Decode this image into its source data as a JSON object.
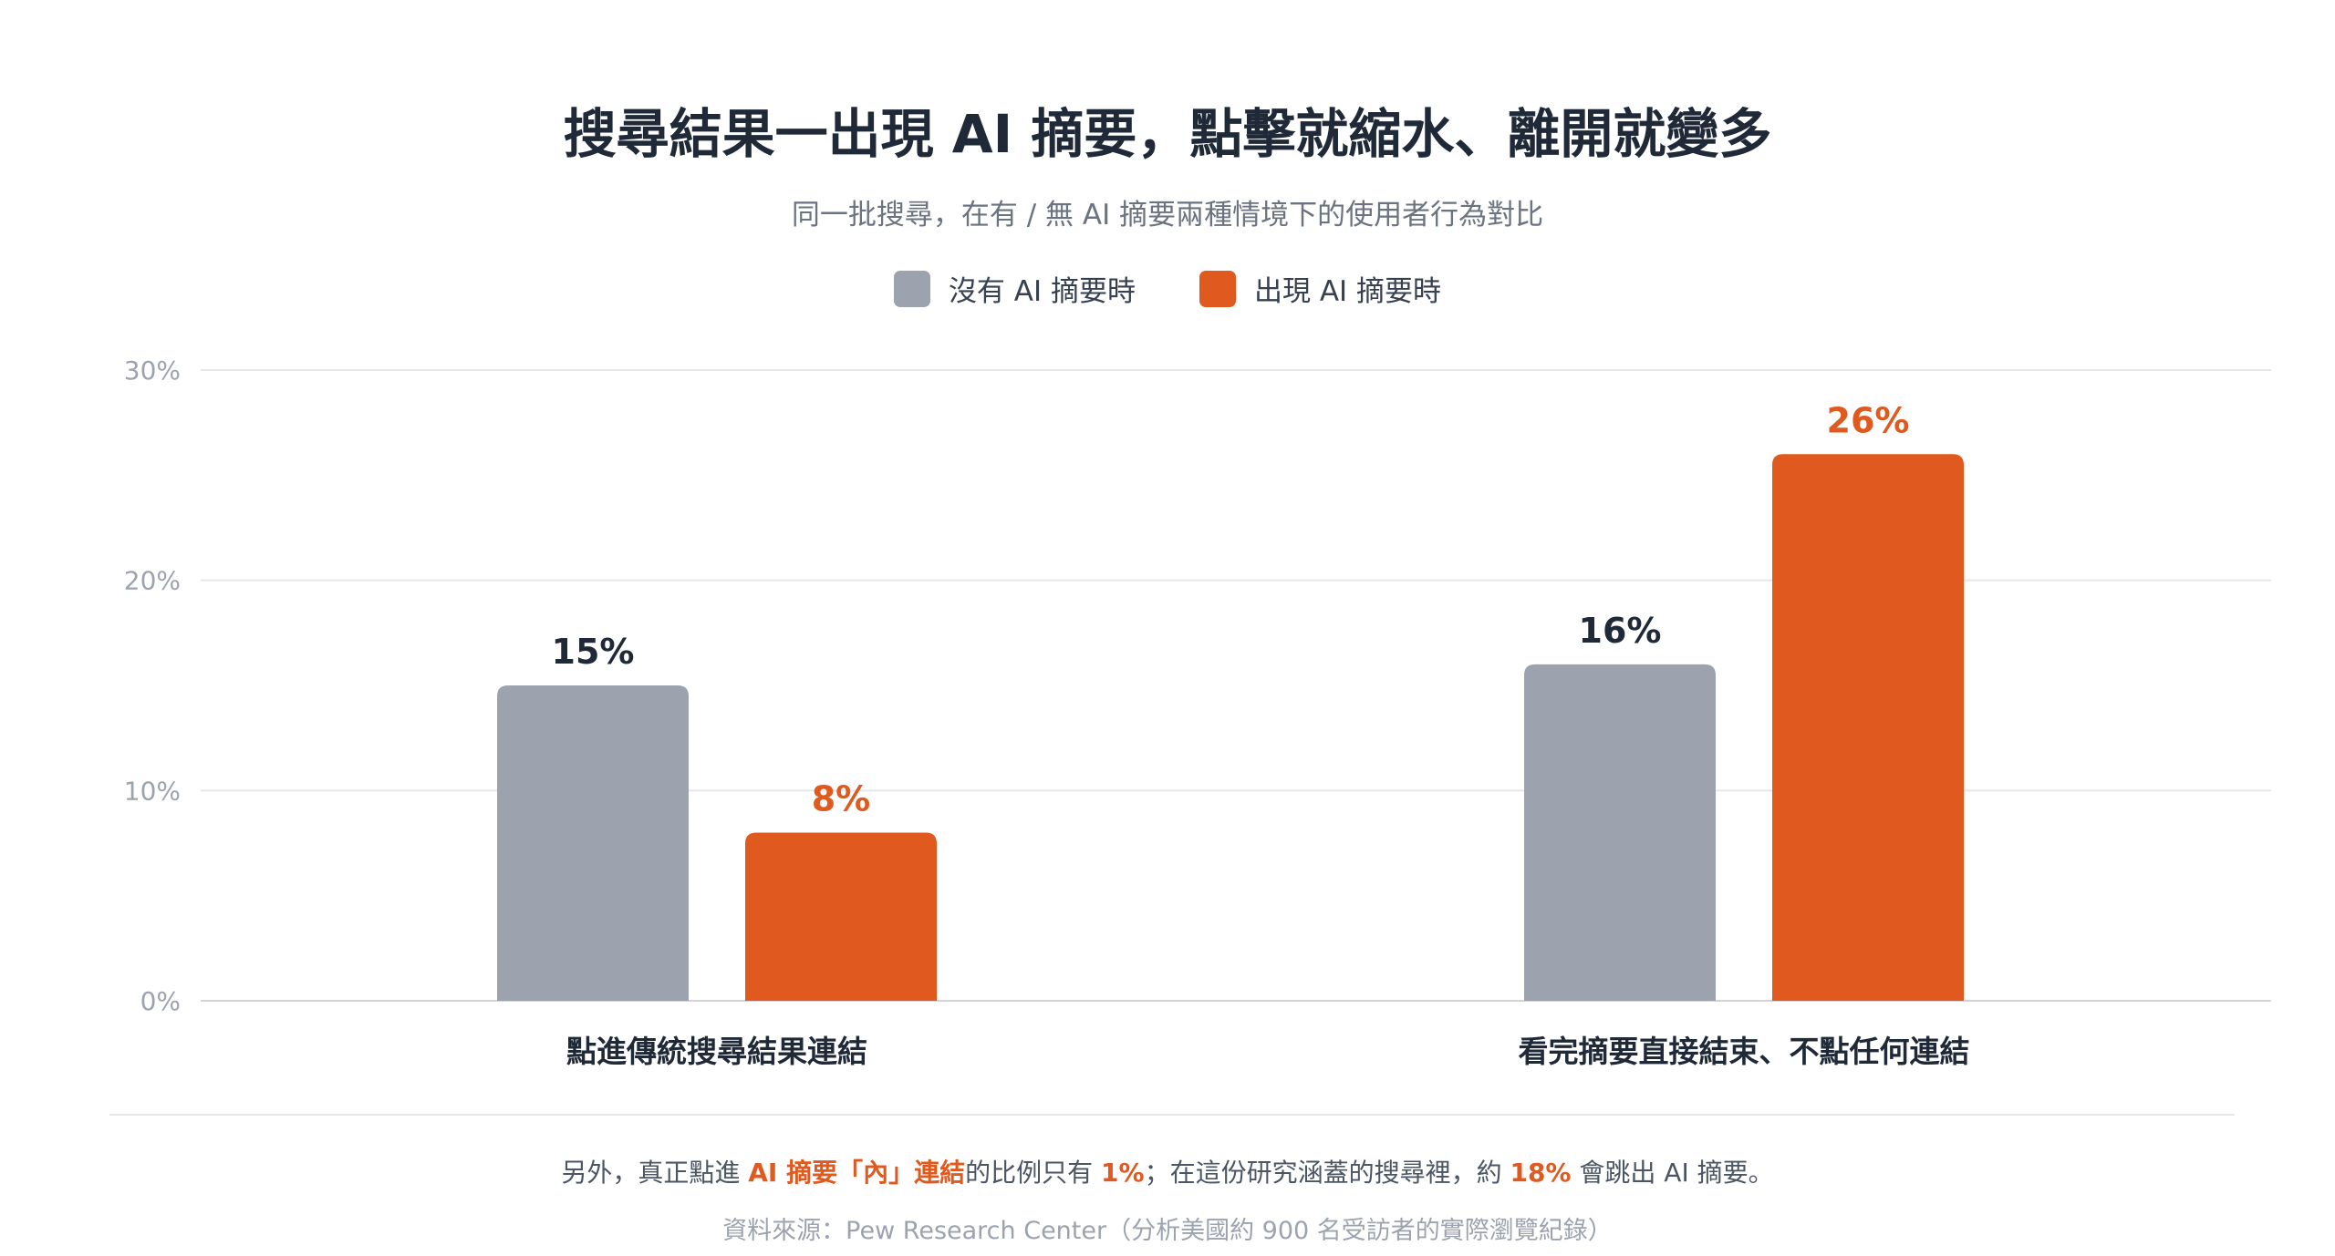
{
  "title": "搜尋結果一出現 AI 摘要，點擊就縮水、離開就變多",
  "subtitle": "同一批搜尋，在有 / 無 AI 摘要兩種情境下的使用者行為對比",
  "legend": [
    {
      "label": "沒有 AI 摘要時",
      "color": "#9ca3af"
    },
    {
      "label": "出現 AI 摘要時",
      "color": "#e05a1f"
    }
  ],
  "note": {
    "p1": "另外，真正點進 ",
    "h1": "AI 摘要「內」連結",
    "p2": "的比例只有 ",
    "h2": "1%",
    "p3": "；在這份研究涵蓋的搜尋裡，約 ",
    "h3": "18%",
    "p4": " 會跳出 AI 摘要。"
  },
  "source": "資料來源：Pew Research Center（分析美國約 900 名受訪者的實際瀏覽紀錄）",
  "chart_data": {
    "type": "bar",
    "categories": [
      "點進傳統搜尋結果連結",
      "看完摘要直接結束、不點任何連結"
    ],
    "series": [
      {
        "name": "沒有 AI 摘要時",
        "values": [
          15,
          16
        ],
        "labels": [
          "15%",
          "16%"
        ],
        "color": "#9ca3af",
        "label_color": "#1f2937"
      },
      {
        "name": "出現 AI 摘要時",
        "values": [
          8,
          26
        ],
        "labels": [
          "8%",
          "26%"
        ],
        "color": "#e05a1f",
        "label_color": "#e05a1f"
      }
    ],
    "yticks": [
      0,
      10,
      20,
      30
    ],
    "ytick_labels": [
      "0%",
      "10%",
      "20%",
      "30%"
    ],
    "ylim": [
      0,
      30
    ],
    "grid": true,
    "legend_position": "top-center"
  }
}
